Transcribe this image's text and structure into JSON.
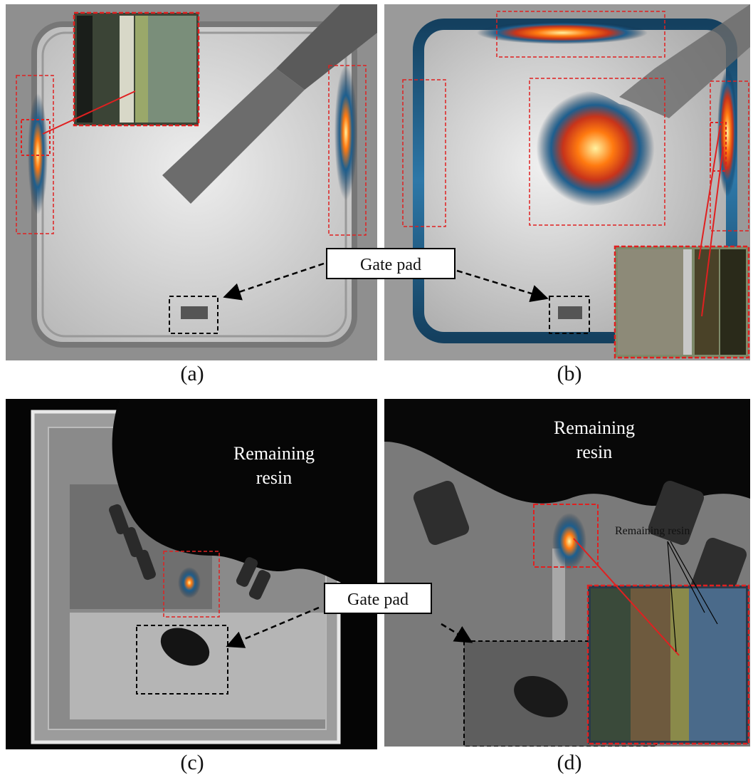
{
  "panels": [
    {
      "id": "a",
      "caption": "(a)"
    },
    {
      "id": "b",
      "caption": "(b)"
    },
    {
      "id": "c",
      "caption": "(c)"
    },
    {
      "id": "d",
      "caption": "(d)"
    }
  ],
  "labels": {
    "gate_pad_top": "Gate pad",
    "gate_pad_bottom": "Gate pad",
    "remaining_resin_c": [
      "Remaining",
      "resin"
    ],
    "remaining_resin_d": [
      "Remaining",
      "resin"
    ],
    "remaining_resin_small": "Remaining resin"
  },
  "colors": {
    "hotspot_core": "#fff2a0",
    "hotspot_mid": "#ff7a10",
    "hotspot_outer": "#c8341a",
    "hotspot_halo": "#1d5f8f",
    "roi_red": "#e02020",
    "roi_black": "#000000"
  }
}
